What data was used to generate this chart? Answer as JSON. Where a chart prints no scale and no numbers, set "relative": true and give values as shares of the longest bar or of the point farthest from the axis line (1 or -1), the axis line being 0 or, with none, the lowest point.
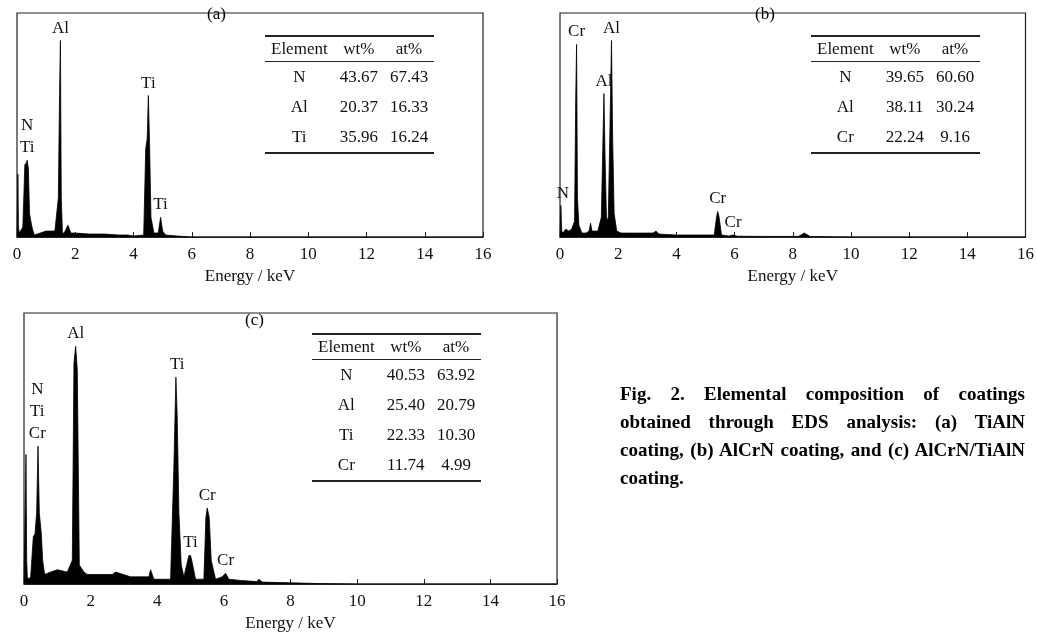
{
  "chart_data": [
    {
      "type": "area",
      "relative": true,
      "color": "#000000",
      "xlabel": "Energy / keV",
      "xlim": [
        0,
        16
      ],
      "xticks": [
        0,
        2,
        4,
        6,
        8,
        10,
        12,
        14,
        16
      ],
      "x": [
        0,
        0.03,
        0.05,
        0.08,
        0.2,
        0.27,
        0.3,
        0.35,
        0.39,
        0.43,
        0.5,
        0.55,
        0.6,
        0.8,
        1.0,
        1.3,
        1.42,
        1.46,
        1.49,
        1.52,
        1.56,
        1.62,
        1.75,
        1.8,
        1.85,
        2.0,
        2.5,
        3.0,
        3.5,
        3.8,
        4.0,
        4.35,
        4.42,
        4.47,
        4.51,
        4.55,
        4.6,
        4.7,
        4.85,
        4.93,
        5.0,
        5.1,
        5.5,
        5.7,
        6,
        8,
        10,
        12,
        14,
        16
      ],
      "values": [
        0,
        0.32,
        0.05,
        0.02,
        0.05,
        0.37,
        0.37,
        0.39,
        0.35,
        0.12,
        0.06,
        0.03,
        0.01,
        0.02,
        0.03,
        0.03,
        0.2,
        0.72,
        1,
        0.2,
        0.02,
        0.02,
        0.06,
        0.04,
        0.02,
        0.02,
        0.015,
        0.015,
        0.01,
        0.01,
        0.005,
        0.01,
        0.45,
        0.5,
        0.72,
        0.48,
        0.1,
        0.02,
        0.02,
        0.1,
        0.03,
        0.01,
        0.005,
        0.003,
        0,
        0,
        0,
        0,
        0,
        0
      ],
      "annotations": [
        "(a)",
        "Element",
        "wt%",
        "at%",
        "N",
        "43.67",
        "67.43",
        "Al",
        "20.37",
        "16.33",
        "Ti",
        "35.96",
        "16.24",
        {
          "text": "Al",
          "x": 1.49,
          "y": 1
        },
        {
          "text": "Ti",
          "x": 4.51,
          "y": 0.72
        },
        {
          "text": "Ti",
          "x": 0.35,
          "y": 0.39
        },
        {
          "text": "N",
          "x": 0.35,
          "y": 0.39
        },
        {
          "text": "Ti",
          "x": 4.93,
          "y": 0.1
        }
      ]
    },
    {
      "type": "area",
      "relative": true,
      "color": "#000000",
      "xlabel": "Energy / keV",
      "xlim": [
        0,
        16
      ],
      "xticks": [
        0,
        2,
        4,
        6,
        8,
        10,
        12,
        14,
        16
      ],
      "x": [
        0,
        0.03,
        0.06,
        0.1,
        0.2,
        0.3,
        0.4,
        0.5,
        0.54,
        0.57,
        0.6,
        0.65,
        0.75,
        0.9,
        1.0,
        1.05,
        1.1,
        1.3,
        1.42,
        1.47,
        1.51,
        1.55,
        1.6,
        1.66,
        1.71,
        1.77,
        1.81,
        1.86,
        1.95,
        2.1,
        2.5,
        3.2,
        3.3,
        3.4,
        4.0,
        5.0,
        5.3,
        5.38,
        5.42,
        5.47,
        5.55,
        5.8,
        5.95,
        6.1,
        7.0,
        8.2,
        8.4,
        8.6,
        10,
        12,
        14,
        16
      ],
      "values": [
        0,
        0.16,
        0.03,
        0.02,
        0.04,
        0.03,
        0.04,
        0.08,
        0.7,
        0.98,
        0.2,
        0.06,
        0.02,
        0.02,
        0.03,
        0.07,
        0.03,
        0.03,
        0.1,
        0.45,
        0.73,
        0.4,
        0.08,
        0.1,
        0.5,
        1,
        0.5,
        0.12,
        0.03,
        0.02,
        0.02,
        0.02,
        0.03,
        0.015,
        0.01,
        0.01,
        0.01,
        0.1,
        0.13,
        0.1,
        0.01,
        0.005,
        0.01,
        0.004,
        0.003,
        0.003,
        0.02,
        0.002,
        0,
        0,
        0,
        0
      ],
      "annotations": [
        "(b)",
        "Element",
        "wt%",
        "at%",
        "N",
        "39.65",
        "60.60",
        "Al",
        "38.11",
        "30.24",
        "Cr",
        "22.24",
        "9.16",
        {
          "text": "Cr",
          "x": 0.57,
          "y": 0.98
        },
        {
          "text": "Al",
          "x": 1.77,
          "y": 1
        },
        {
          "text": "Al",
          "x": 1.51,
          "y": 0.73
        },
        {
          "text": "N",
          "x": 0.1,
          "y": 0.16
        },
        {
          "text": "Cr",
          "x": 5.42,
          "y": 0.13
        },
        {
          "text": "Cr",
          "x": 5.95,
          "y": 0.01
        }
      ]
    },
    {
      "type": "area",
      "relative": true,
      "color": "#000000",
      "xlabel": "Energy / keV",
      "xlim": [
        0,
        16
      ],
      "xticks": [
        0,
        2,
        4,
        6,
        8,
        10,
        12,
        14,
        16
      ],
      "x": [
        0,
        0.06,
        0.08,
        0.1,
        0.14,
        0.2,
        0.28,
        0.33,
        0.38,
        0.42,
        0.46,
        0.52,
        0.56,
        0.62,
        0.8,
        1.0,
        1.3,
        1.45,
        1.5,
        1.55,
        1.6,
        1.66,
        1.8,
        1.9,
        2.2,
        2.65,
        2.75,
        3.2,
        3.75,
        3.8,
        3.9,
        4.4,
        4.5,
        4.56,
        4.6,
        4.65,
        4.72,
        4.8,
        4.95,
        5.0,
        5.05,
        5.15,
        5.4,
        5.46,
        5.5,
        5.56,
        5.62,
        5.75,
        5.95,
        6.05,
        6.15,
        6.5,
        7.0,
        7.05,
        7.15,
        8,
        8.8,
        10,
        12,
        14,
        16
      ],
      "values": [
        0,
        0.545,
        0.1,
        0.03,
        0.02,
        0.03,
        0.2,
        0.21,
        0.3,
        0.58,
        0.3,
        0.21,
        0.1,
        0.04,
        0.05,
        0.06,
        0.05,
        0.1,
        0.93,
        1,
        0.9,
        0.08,
        0.05,
        0.04,
        0.04,
        0.04,
        0.05,
        0.03,
        0.03,
        0.06,
        0.02,
        0.02,
        0.5,
        0.87,
        0.7,
        0.3,
        0.08,
        0.03,
        0.12,
        0.12,
        0.09,
        0.02,
        0.02,
        0.28,
        0.32,
        0.28,
        0.1,
        0.02,
        0.03,
        0.045,
        0.02,
        0.015,
        0.01,
        0.02,
        0.008,
        0.005,
        0.002,
        0,
        0,
        0,
        0
      ],
      "annotations": [
        "(c)",
        "Element",
        "wt%",
        "at%",
        "N",
        "40.53",
        "63.92",
        "Al",
        "25.40",
        "20.79",
        "Ti",
        "22.33",
        "10.30",
        "Cr",
        "11.74",
        "4.99",
        {
          "text": "Al",
          "x": 1.55,
          "y": 1
        },
        {
          "text": "Ti",
          "x": 4.6,
          "y": 0.87
        },
        {
          "text": "Cr",
          "x": 0.4,
          "y": 0.58
        },
        {
          "text": "Ti",
          "x": 0.4,
          "y": 0.58
        },
        {
          "text": "N",
          "x": 0.4,
          "y": 0.58
        },
        {
          "text": "Cr",
          "x": 5.5,
          "y": 0.32
        },
        {
          "text": "Ti",
          "x": 5.0,
          "y": 0.12
        },
        {
          "text": "Cr",
          "x": 6.05,
          "y": 0.045
        }
      ]
    },
    {
      "type": "other",
      "annotations": [
        "Fig. 2.   Elemental composition of coatings obtained through EDS analysis: (a) TiAlN coating, (b) AlCrN coating, and (c) AlCrN/TiAlN coating."
      ]
    }
  ]
}
